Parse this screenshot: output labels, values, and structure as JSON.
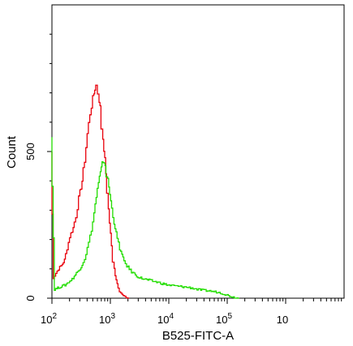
{
  "chart_data": {
    "type": "line",
    "title": "",
    "xlabel": "B525-FITC-A",
    "ylabel": "Count",
    "x_scale": "log",
    "xlim": [
      100,
      10000000
    ],
    "ylim": [
      0,
      1000
    ],
    "grid": false,
    "legend": "none",
    "y_ticks": [
      {
        "value": 0,
        "label": "0"
      },
      {
        "value": 500,
        "label": "500"
      }
    ],
    "x_ticks": [
      {
        "value": 100,
        "base": "10",
        "exp": "2"
      },
      {
        "value": 1000,
        "base": "10",
        "exp": "3"
      },
      {
        "value": 10000,
        "base": "10",
        "exp": "4"
      },
      {
        "value": 100000,
        "base": "10",
        "exp": "5"
      },
      {
        "value": 1000000,
        "base": "10",
        "exp": ""
      }
    ],
    "series": [
      {
        "color": "#e8000b",
        "x": [
          100,
          110,
          122,
          135,
          150,
          170,
          190,
          210,
          240,
          270,
          300,
          340,
          380,
          420,
          470,
          520,
          560,
          600,
          640,
          690,
          740,
          800,
          860,
          920,
          1000,
          1080,
          1160,
          1250,
          1350,
          1500,
          1650,
          1850,
          2100
        ],
        "y": [
          500,
          70,
          85,
          100,
          110,
          130,
          170,
          210,
          240,
          280,
          340,
          400,
          470,
          560,
          630,
          680,
          715,
          725,
          700,
          650,
          580,
          510,
          430,
          350,
          260,
          180,
          120,
          80,
          50,
          25,
          12,
          4,
          0
        ]
      },
      {
        "color": "#22dd00",
        "x": [
          100,
          115,
          130,
          150,
          175,
          200,
          230,
          260,
          300,
          340,
          380,
          420,
          470,
          520,
          570,
          620,
          670,
          720,
          780,
          840,
          900,
          970,
          1050,
          1150,
          1300,
          1500,
          1700,
          2000,
          2400,
          2800,
          3300,
          4000,
          5000,
          6500,
          8000,
          10000,
          13000,
          16000,
          20000,
          26000,
          32000,
          40000,
          50000,
          65000,
          80000,
          100000,
          120000,
          140000,
          160000
        ],
        "y": [
          560,
          30,
          35,
          40,
          45,
          55,
          65,
          80,
          95,
          115,
          135,
          170,
          210,
          260,
          320,
          370,
          410,
          440,
          470,
          455,
          420,
          380,
          330,
          280,
          220,
          170,
          135,
          110,
          90,
          80,
          70,
          65,
          60,
          55,
          50,
          45,
          42,
          40,
          38,
          35,
          30,
          27,
          25,
          22,
          18,
          12,
          6,
          2,
          0
        ]
      }
    ]
  }
}
